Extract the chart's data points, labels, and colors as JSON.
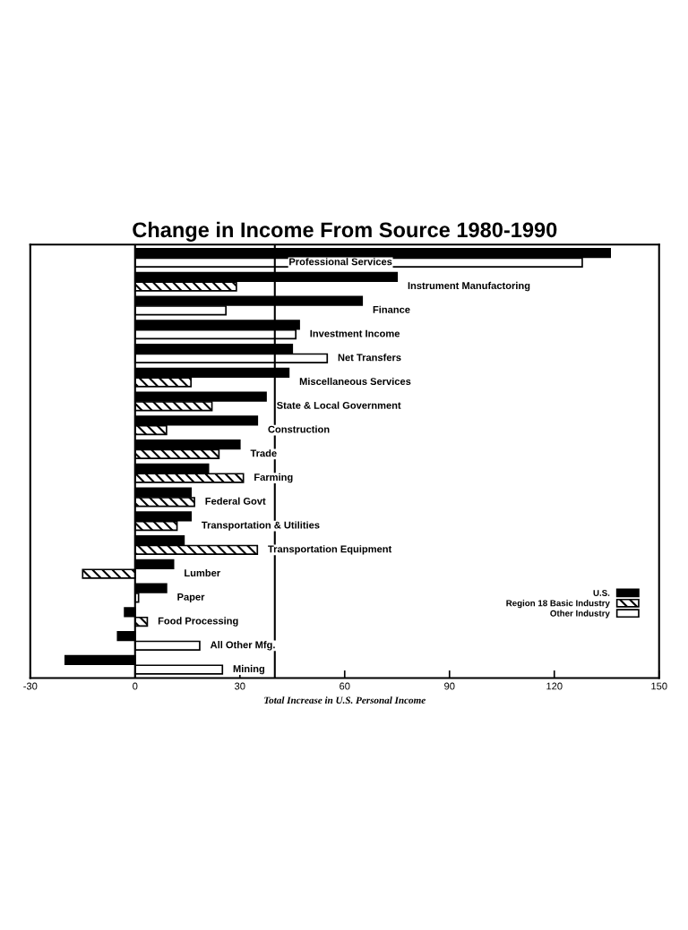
{
  "chart_data": {
    "type": "bar",
    "orientation": "horizontal",
    "title": "Change in Income From Source 1980-1990",
    "xlabel": "Total Increase in U.S. Personal Income",
    "categories": [
      "Professional Services",
      "Instrument Manufactoring",
      "Finance",
      "Investment Income",
      "Net Transfers",
      "Miscellaneous Services",
      "State & Local Government",
      "Construction",
      "Trade",
      "Farming",
      "Federal Govt",
      "Transportation & Utilities",
      "Transportation Equipment",
      "Lumber",
      "Paper",
      "Food Processing",
      "All Other Mfg.",
      "Mining"
    ],
    "series": [
      {
        "name": "U.S.",
        "color": "#000000",
        "values": [
          136,
          75,
          65,
          47,
          45,
          44,
          37.5,
          35,
          30,
          21,
          16,
          16,
          14,
          11,
          9,
          -3,
          -5,
          -20
        ]
      },
      {
        "name": "Region 18 Basic Industry",
        "color": "#000000",
        "values": [
          null,
          29,
          null,
          null,
          null,
          16,
          22,
          9,
          24,
          31,
          17,
          12,
          35,
          -15,
          null,
          3.5,
          null,
          null
        ]
      },
      {
        "name": "Other Industry",
        "color": "#ffffff",
        "values": [
          128,
          null,
          26,
          46,
          55,
          null,
          null,
          null,
          null,
          null,
          null,
          null,
          null,
          null,
          1,
          null,
          18.5,
          25
        ]
      }
    ],
    "xlim": [
      -30,
      150
    ],
    "xticks": [
      -30,
      0,
      30,
      60,
      90,
      120,
      150
    ],
    "ref_lines": [
      {
        "axis": "x",
        "value": 0
      },
      {
        "axis": "x",
        "value": 40
      }
    ],
    "legend": "bottom right",
    "tick_labels": "x",
    "grid": false
  }
}
